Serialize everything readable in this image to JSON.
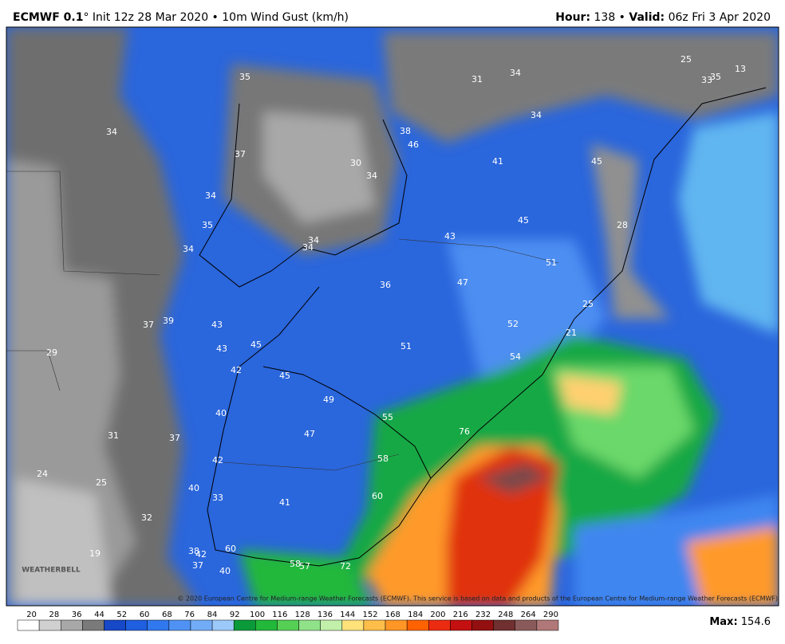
{
  "header": {
    "model": "ECMWF 0.1",
    "title_rest": "° Init 12z 28 Mar 2020 • 10m Wind Gust (km/h)",
    "hour_label": "Hour:",
    "hour_value": " 138 • ",
    "valid_label": "Valid:",
    "valid_value": " 06z Fri 3 Apr 2020"
  },
  "map_labels": [
    35,
    31,
    34,
    25,
    13,
    33,
    35,
    34,
    38,
    46,
    34,
    37,
    30,
    34,
    41,
    45,
    34,
    45,
    35,
    34,
    34,
    43,
    28,
    34,
    51,
    36,
    47,
    25,
    37,
    39,
    43,
    52,
    21,
    43,
    45,
    51,
    29,
    54,
    42,
    45,
    49,
    55,
    40,
    76,
    47,
    31,
    37,
    58,
    42,
    24,
    25,
    40,
    33,
    41,
    60,
    32,
    19,
    38,
    42,
    60,
    37,
    40,
    58,
    57,
    72
  ],
  "copyright": "© 2020 European Centre for Medium-range Weather Forecasts (ECMWF). This service is based on data and products of the European Centre for Medium-range Weather Forecasts (ECMWF).",
  "logo": "WEATHERBELL",
  "colorbar": {
    "ticks": [
      20,
      28,
      36,
      44,
      52,
      60,
      68,
      76,
      84,
      92,
      100,
      116,
      128,
      136,
      144,
      152,
      168,
      184,
      200,
      216,
      232,
      248,
      264,
      290
    ],
    "colors": [
      "#ffffff",
      "#d0d0d0",
      "#a8a8a8",
      "#7a7a7a",
      "#1648c8",
      "#1f5fe0",
      "#2f78ee",
      "#4f92f4",
      "#72acf7",
      "#9cc9fa",
      "#0a9a3a",
      "#22b83a",
      "#55d055",
      "#90e288",
      "#c2efaa",
      "#ffe27a",
      "#ffbe4a",
      "#ff9626",
      "#ff6200",
      "#ec2c10",
      "#c41010",
      "#941010",
      "#703030",
      "#8a5a5a",
      "#b07878"
    ]
  },
  "max": {
    "label": "Max:",
    "value": " 154.6"
  }
}
